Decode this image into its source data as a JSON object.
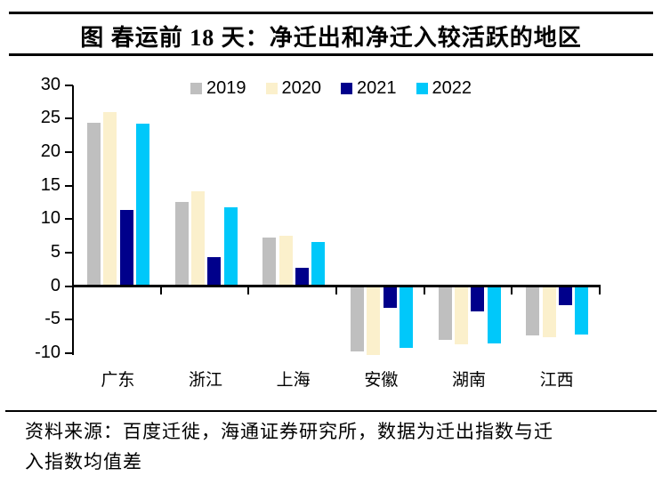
{
  "header": {
    "title": "图  春运前 18 天：净迁出和净迁入较活跃的地区"
  },
  "chart_data": {
    "type": "bar",
    "title": "图  春运前 18 天：净迁出和净迁入较活跃的地区",
    "categories": [
      "广东",
      "浙江",
      "上海",
      "安徽",
      "湖南",
      "江西"
    ],
    "series": [
      {
        "name": "2019",
        "color": "#BFBFBF",
        "values": [
          24.4,
          12.5,
          7.3,
          -9.8,
          -8.1,
          -7.4
        ]
      },
      {
        "name": "2020",
        "color": "#FBF0CC",
        "values": [
          26.0,
          14.1,
          7.5,
          -10.3,
          -8.7,
          -7.7
        ]
      },
      {
        "name": "2021",
        "color": "#00008B",
        "values": [
          11.3,
          4.3,
          2.7,
          -3.3,
          -3.8,
          -2.9
        ]
      },
      {
        "name": "2022",
        "color": "#00C8FA",
        "values": [
          24.2,
          11.7,
          6.6,
          -9.2,
          -8.6,
          -7.3
        ]
      }
    ],
    "ylim": [
      -10,
      30
    ],
    "yticks": [
      30,
      25,
      20,
      15,
      10,
      5,
      0,
      -5,
      -10
    ],
    "xlabel": "",
    "ylabel": "",
    "legend_position": "top",
    "grid": false
  },
  "footer": {
    "source_line1": "资料来源：百度迁徙，海通证券研究所，数据为迁出指数与迁",
    "source_line2": "入指数均值差"
  }
}
